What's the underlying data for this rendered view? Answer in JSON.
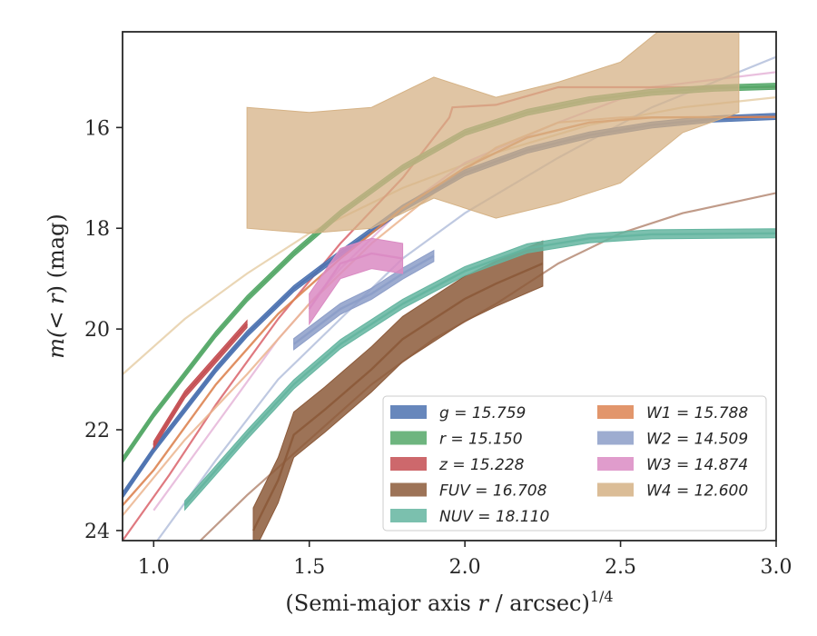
{
  "chart_data": {
    "type": "area",
    "title": "",
    "xlabel_main": "(Semi-major axis ",
    "xlabel_var": "r",
    "xlabel_tail": " / arcsec)",
    "xlabel_exp": "1/4",
    "ylabel_main": "m(",
    "ylabel_var": "< r",
    "ylabel_tail": ") (mag)",
    "xlim": [
      0.9,
      3.0
    ],
    "ylim": [
      24.2,
      14.1
    ],
    "y_inverted": true,
    "x_ticks": [
      1.0,
      1.5,
      2.0,
      2.5,
      3.0
    ],
    "x_tick_labels": [
      "1.0",
      "1.5",
      "2.0",
      "2.5",
      "3.0"
    ],
    "y_ticks": [
      16,
      18,
      20,
      22,
      24
    ],
    "y_tick_labels": [
      "16",
      "18",
      "20",
      "22",
      "24"
    ],
    "grid": false,
    "legend_placement": "lower-right",
    "series": [
      {
        "key": "g",
        "name": "g = 15.759",
        "color": "#4c72b0",
        "kind": "band",
        "x": [
          0.9,
          1.0,
          1.1,
          1.2,
          1.3,
          1.45,
          1.6,
          1.8,
          2.0,
          2.2,
          2.4,
          2.6,
          2.8,
          3.0
        ],
        "y": [
          23.3,
          22.4,
          21.6,
          20.8,
          20.1,
          19.2,
          18.5,
          17.6,
          16.9,
          16.45,
          16.15,
          15.95,
          15.83,
          15.78
        ],
        "w": 0.12
      },
      {
        "key": "r",
        "name": "r = 15.150",
        "color": "#55a868",
        "kind": "band",
        "x": [
          0.9,
          1.0,
          1.1,
          1.2,
          1.3,
          1.45,
          1.6,
          1.8,
          2.0,
          2.2,
          2.4,
          2.6,
          2.8,
          3.0
        ],
        "y": [
          22.6,
          21.7,
          20.9,
          20.1,
          19.4,
          18.5,
          17.7,
          16.8,
          16.1,
          15.7,
          15.45,
          15.3,
          15.22,
          15.18
        ],
        "w": 0.12
      },
      {
        "key": "z",
        "name": "z = 15.228",
        "color": "#c44e52",
        "kind": "band",
        "x": [
          1.0,
          1.1,
          1.2,
          1.3
        ],
        "y": [
          22.3,
          21.3,
          20.6,
          19.9
        ],
        "w": 0.14
      },
      {
        "key": "FUV",
        "name": "FUV = 16.708",
        "color": "#8c5a3a",
        "kind": "band",
        "x": [
          1.32,
          1.4,
          1.45,
          1.55,
          1.7,
          1.8,
          1.9,
          2.0,
          2.1,
          2.25
        ],
        "y": [
          24.0,
          23.0,
          22.1,
          21.6,
          20.8,
          20.2,
          19.8,
          19.4,
          19.1,
          18.7
        ],
        "w": 0.9
      },
      {
        "key": "NUV",
        "name": "NUV = 18.110",
        "color": "#64b5a0",
        "kind": "line",
        "x": [
          1.1,
          1.2,
          1.3,
          1.45,
          1.6,
          1.8,
          2.0,
          2.2,
          2.4,
          2.6,
          3.0
        ],
        "y": [
          23.5,
          22.8,
          22.1,
          21.1,
          20.3,
          19.5,
          18.85,
          18.4,
          18.2,
          18.12,
          18.1
        ],
        "w": 0.18
      },
      {
        "key": "W1",
        "name": "W1 = 15.788",
        "color": "#dd8452",
        "kind": "line",
        "x": [
          0.9,
          1.0,
          1.2,
          1.4,
          1.6,
          1.8,
          2.0,
          2.2,
          2.4,
          2.6,
          3.0
        ],
        "y": [
          23.5,
          22.8,
          21.1,
          19.7,
          18.6,
          17.6,
          16.8,
          16.2,
          15.9,
          15.8,
          15.79
        ],
        "w": 0
      },
      {
        "key": "W2",
        "name": "W2 = 14.509",
        "color": "#8c9dc8",
        "kind": "band",
        "x": [
          1.45,
          1.6,
          1.7,
          1.8,
          1.9
        ],
        "y": [
          20.3,
          19.6,
          19.3,
          18.9,
          18.55
        ],
        "w": 0.22
      },
      {
        "key": "W3",
        "name": "W3 = 14.874",
        "color": "#da8bc3",
        "kind": "band",
        "x": [
          1.5,
          1.6,
          1.7,
          1.8
        ],
        "y": [
          19.6,
          18.7,
          18.5,
          18.6
        ],
        "w": 0.6
      },
      {
        "key": "W4",
        "name": "W4 = 12.600",
        "color": "#d5b285",
        "kind": "band",
        "x": [
          1.3,
          1.5,
          1.7,
          1.9,
          2.1,
          2.3,
          2.5,
          2.7,
          2.88
        ],
        "y": [
          16.8,
          16.9,
          16.8,
          16.2,
          16.6,
          16.3,
          15.9,
          14.9,
          14.5
        ],
        "w": 2.4
      }
    ],
    "thin_lines": [
      {
        "key": "W4-curve",
        "color": "#e6cfa8",
        "x": [
          0.9,
          1.1,
          1.3,
          1.5,
          1.8,
          2.1,
          2.4,
          2.7,
          3.0
        ],
        "y": [
          20.9,
          19.8,
          18.9,
          18.1,
          17.2,
          16.5,
          15.95,
          15.6,
          15.4
        ]
      },
      {
        "key": "W3-curve",
        "color": "#e5b5d8",
        "x": [
          1.0,
          1.2,
          1.4,
          1.6,
          1.8,
          2.0,
          2.3,
          2.6,
          3.0
        ],
        "y": [
          23.6,
          21.9,
          20.2,
          18.8,
          17.6,
          16.7,
          15.9,
          15.2,
          14.9
        ]
      },
      {
        "key": "W2-curve",
        "color": "#b4c0dc",
        "x": [
          1.0,
          1.2,
          1.4,
          1.6,
          1.8,
          2.0,
          2.3,
          2.6,
          3.0
        ],
        "y": [
          24.3,
          22.6,
          21.0,
          19.8,
          18.6,
          17.7,
          16.6,
          15.6,
          14.6
        ]
      },
      {
        "key": "z-curve",
        "color": "#d9616a",
        "x": [
          0.9,
          1.05,
          1.2,
          1.4,
          1.6,
          1.8,
          1.95,
          1.96,
          2.1,
          2.3,
          2.5,
          3.0
        ],
        "y": [
          24.2,
          22.9,
          21.5,
          19.8,
          18.3,
          17.0,
          15.8,
          15.6,
          15.55,
          15.2,
          15.2,
          15.2
        ]
      },
      {
        "key": "FUV-curve",
        "color": "#b58a74",
        "x": [
          1.15,
          1.3,
          1.5,
          1.7,
          1.9,
          2.1,
          2.3,
          2.5,
          2.7,
          3.0
        ],
        "y": [
          24.2,
          23.3,
          22.2,
          21.1,
          20.2,
          19.5,
          18.7,
          18.1,
          17.7,
          17.3
        ]
      },
      {
        "key": "W1-curve",
        "color": "#ebb48e",
        "x": [
          0.9,
          1.1,
          1.3,
          1.5,
          1.7,
          1.9,
          2.1,
          2.3,
          2.5,
          3.0
        ],
        "y": [
          23.7,
          22.2,
          20.9,
          19.5,
          18.3,
          17.3,
          16.4,
          15.9,
          15.8,
          15.79
        ]
      }
    ],
    "legend": {
      "col1": [
        {
          "label": "g = 15.759",
          "color": "#4c72b0"
        },
        {
          "label": "r = 15.150",
          "color": "#55a868"
        },
        {
          "label": "z = 15.228",
          "color": "#c44e52"
        },
        {
          "label": "FUV = 16.708",
          "color": "#8c5a3a"
        },
        {
          "label": "NUV = 18.110",
          "color": "#64b5a0"
        }
      ],
      "col2": [
        {
          "label": "W1 = 15.788",
          "color": "#dd8452"
        },
        {
          "label": "W2 = 14.509",
          "color": "#8c9dc8"
        },
        {
          "label": "W3 = 14.874",
          "color": "#da8bc3"
        },
        {
          "label": "W4 = 12.600",
          "color": "#d5b285"
        }
      ]
    }
  }
}
